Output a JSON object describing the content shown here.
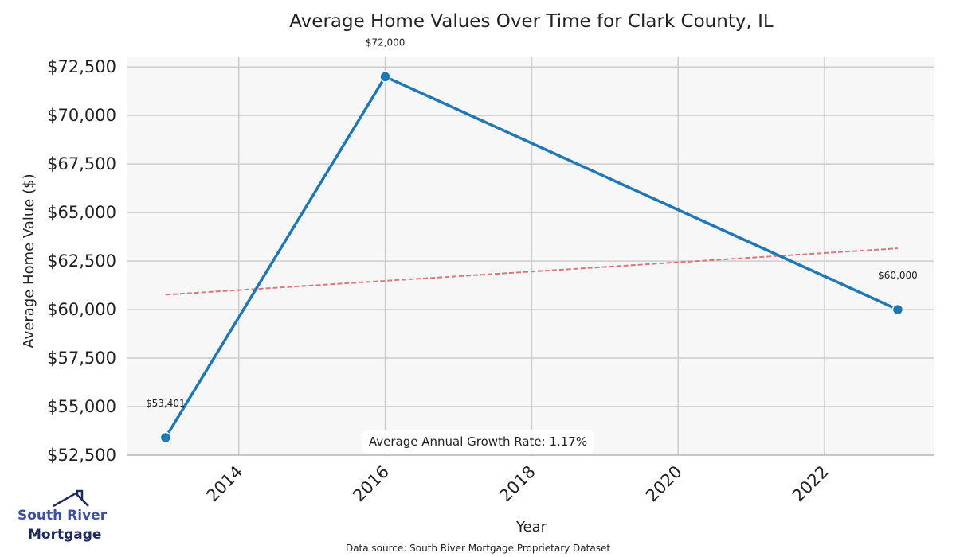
{
  "chart_data": {
    "type": "line",
    "title": "Average Home Values Over Time for Clark County, IL",
    "xlabel": "Year",
    "ylabel": "Average Home Value ($)",
    "xlim": [
      2012.48,
      2023.49
    ],
    "ylim": [
      52500,
      73000
    ],
    "grid": true,
    "x_ticks": [
      2014,
      2016,
      2018,
      2020,
      2022
    ],
    "y_ticks": [
      52500,
      55000,
      57500,
      60000,
      62500,
      65000,
      67500,
      70000,
      72500
    ],
    "y_tick_labels": [
      "$52,500",
      "$55,000",
      "$57,500",
      "$60,000",
      "$62,500",
      "$65,000",
      "$67,500",
      "$70,000",
      "$72,500"
    ],
    "series": [
      {
        "name": "Average Home Value",
        "color": "#1f77b4",
        "x": [
          2013,
          2016,
          2023
        ],
        "y": [
          53401,
          72000,
          60000
        ],
        "labels": [
          "$53,401",
          "$72,000",
          "$60,000"
        ]
      }
    ],
    "trend_line": {
      "color": "#d9777b",
      "x": [
        2013,
        2023
      ],
      "y": [
        60765,
        63155
      ]
    },
    "annotation": "Average Annual Growth Rate: 1.17%",
    "source": "Data source: South River Mortgage Proprietary Dataset"
  },
  "logo": {
    "line1": "South River",
    "line2": "Mortgage"
  }
}
